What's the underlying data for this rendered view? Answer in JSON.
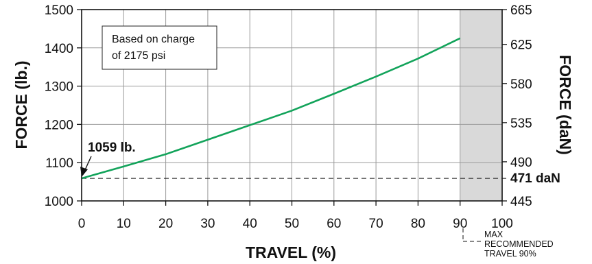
{
  "chart_data": {
    "type": "line",
    "x": [
      0,
      10,
      20,
      30,
      40,
      50,
      60,
      70,
      80,
      90
    ],
    "y": [
      1059,
      1090,
      1122,
      1160,
      1198,
      1236,
      1280,
      1325,
      1372,
      1425
    ],
    "xlabel": "TRAVEL (%)",
    "ylabel": "FORCE (lb.)",
    "y2label": "FORCE (daN)",
    "xlim": [
      0,
      100
    ],
    "ylim": [
      1000,
      1500
    ],
    "y2lim": [
      445,
      665
    ],
    "x_ticks": [
      "0",
      "10",
      "20",
      "30",
      "40",
      "50",
      "60",
      "70",
      "80",
      "90",
      "100"
    ],
    "y_ticks": [
      "1000",
      "1100",
      "1200",
      "1300",
      "1400",
      "1500"
    ],
    "y2_ticks": [
      "445",
      "490",
      "535",
      "580",
      "625",
      "665"
    ],
    "grid": true,
    "line_color": "#12a35a",
    "shaded_region": {
      "x_from": 90,
      "x_to": 100,
      "color": "#d9d9d9"
    },
    "reference_y": 1059,
    "annotations": {
      "note_line1": "Based on charge",
      "note_line2": "of 2175 psi",
      "start_label": "1059 lb.",
      "right_ref_label": "471 daN",
      "max_line1": "MAX",
      "max_line2": "RECOMMENDED",
      "max_line3": "TRAVEL 90%"
    }
  }
}
